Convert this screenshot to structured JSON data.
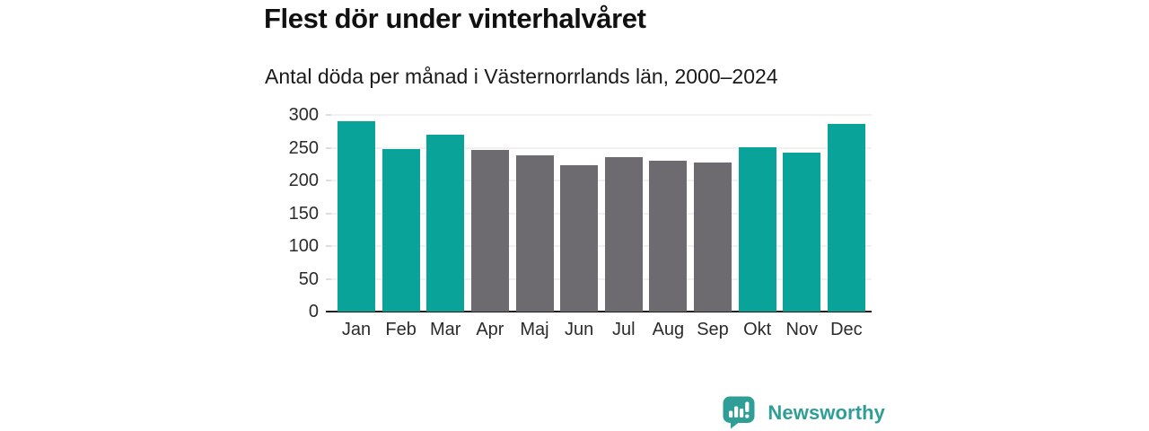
{
  "title": "Flest dör under vinterhalvåret",
  "subtitle": "Antal döda per månad i Västernorrlands län, 2000–2024",
  "branding": {
    "logo_text": "Newsworthy",
    "logo_icon": "bar-chart-speech-bubble-icon"
  },
  "colors": {
    "winter_bar": "#0aa39a",
    "summer_bar": "#6d6a70",
    "brand": "#2f9e96",
    "gridline": "#e3e3e3",
    "axis": "#1f1f1f",
    "title_text": "#111111",
    "tick_text": "#2b2b2b"
  },
  "chart_data": {
    "type": "bar",
    "title": "Flest dör under vinterhalvåret",
    "subtitle": "Antal döda per månad i Västernorrlands län, 2000–2024",
    "categories": [
      "Jan",
      "Feb",
      "Mar",
      "Apr",
      "Maj",
      "Jun",
      "Jul",
      "Aug",
      "Sep",
      "Okt",
      "Nov",
      "Dec"
    ],
    "values": [
      290,
      248,
      270,
      247,
      239,
      223,
      235,
      230,
      228,
      251,
      243,
      287
    ],
    "bar_colors": [
      "#0aa39a",
      "#0aa39a",
      "#0aa39a",
      "#6d6a70",
      "#6d6a70",
      "#6d6a70",
      "#6d6a70",
      "#6d6a70",
      "#6d6a70",
      "#0aa39a",
      "#0aa39a",
      "#0aa39a"
    ],
    "highlighted_categories": [
      "Jan",
      "Feb",
      "Mar",
      "Okt",
      "Nov",
      "Dec"
    ],
    "xlabel": "",
    "ylabel": "",
    "ylim": [
      0,
      300
    ],
    "yticks": [
      0,
      50,
      100,
      150,
      200,
      250,
      300
    ],
    "grid": true,
    "legend": false
  }
}
